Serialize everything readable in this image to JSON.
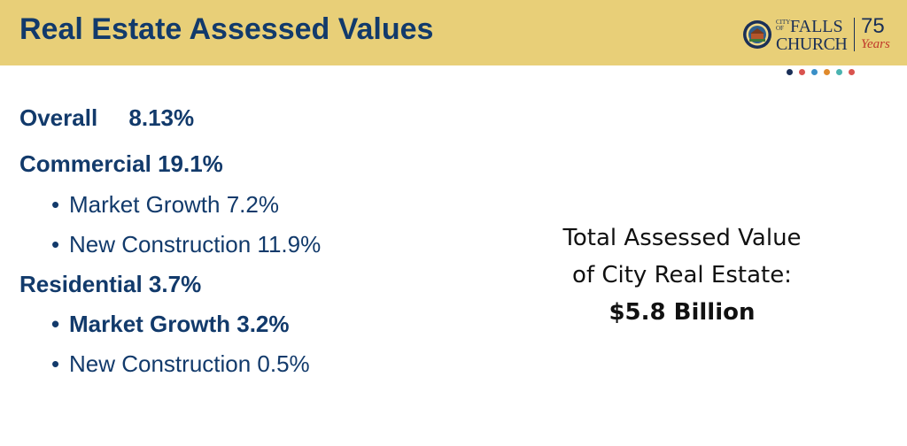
{
  "header": {
    "title": "Real Estate Assessed Values",
    "logo": {
      "city_of": "CITY OF",
      "falls": "FALLS",
      "church": "CHURCH",
      "anniversary": "75",
      "years": "Years"
    },
    "accent_dots": [
      "#1a2f57",
      "#d9534f",
      "#3a8fc7",
      "#e08a2c",
      "#4ab3b0",
      "#d9534f"
    ]
  },
  "summary": {
    "overall_label": "Overall",
    "overall_value": "8.13%",
    "commercial": "Commercial 19.1%",
    "commercial_items": [
      "Market Growth 7.2%",
      "New Construction 11.9%"
    ],
    "residential": "Residential 3.7%",
    "residential_items": [
      "Market Growth 3.2%",
      "New Construction 0.5%"
    ]
  },
  "total": {
    "line1": "Total Assessed Value",
    "line2": "of City Real Estate:",
    "amount": "$5.8 Billion"
  },
  "colors": {
    "header_bg": "#e8cf78",
    "title": "#123a6b",
    "body_text": "#123a6b"
  }
}
